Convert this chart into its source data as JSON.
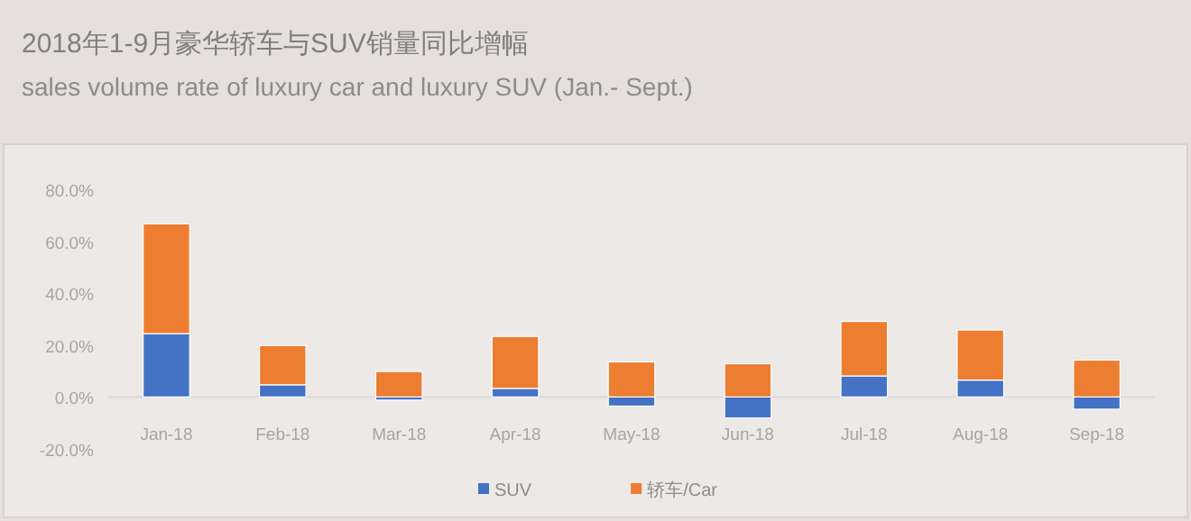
{
  "chart_data": {
    "type": "bar",
    "stacked": true,
    "title": "2018年1-9月豪华轿车与SUV销量同比增幅",
    "subtitle": "sales volume rate of luxury car and luxury SUV (Jan.- Sept.)",
    "categories": [
      "Jan-18",
      "Feb-18",
      "Mar-18",
      "Apr-18",
      "May-18",
      "Jun-18",
      "Jul-18",
      "Aug-18",
      "Sep-18"
    ],
    "series": [
      {
        "name": "SUV",
        "color": "#4472c4",
        "values": [
          24.4,
          4.7,
          -1.2,
          3.3,
          -3.5,
          -8.1,
          8.1,
          6.5,
          -4.7
        ]
      },
      {
        "name": "轿车/Car",
        "color": "#ed7d31",
        "values": [
          42.3,
          15.1,
          9.8,
          20.0,
          13.5,
          12.8,
          21.0,
          19.3,
          14.2
        ]
      }
    ],
    "ylim": [
      -20,
      80
    ],
    "yticks": [
      {
        "value": -20,
        "label": "-20.0%"
      },
      {
        "value": 0,
        "label": "0.0%"
      },
      {
        "value": 20,
        "label": "20.0%"
      },
      {
        "value": 40,
        "label": "40.0%"
      },
      {
        "value": 60,
        "label": "60.0%"
      },
      {
        "value": 80,
        "label": "80.0%"
      }
    ],
    "grid": false,
    "legend": "bottom"
  }
}
